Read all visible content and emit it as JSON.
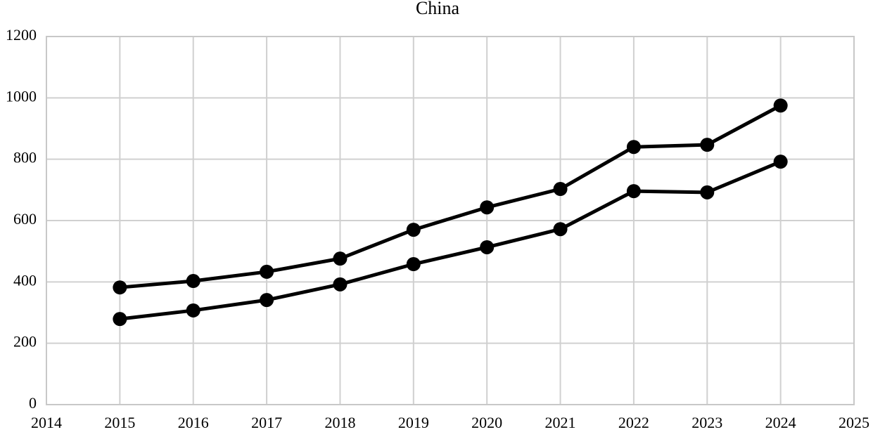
{
  "chart_data": {
    "type": "line",
    "title": "China",
    "x": [
      2015,
      2016,
      2017,
      2018,
      2019,
      2020,
      2021,
      2022,
      2023,
      2024
    ],
    "series": [
      {
        "color": "#000000",
        "values": [
          382,
          403,
          433,
          476,
          570,
          643,
          703,
          840,
          847,
          975
        ]
      },
      {
        "color": "#000000",
        "values": [
          279,
          307,
          341,
          392,
          458,
          513,
          572,
          696,
          692,
          792
        ]
      }
    ],
    "xlim": [
      2014,
      2025
    ],
    "xticks": [
      2014,
      2015,
      2016,
      2017,
      2018,
      2019,
      2020,
      2021,
      2022,
      2023,
      2024,
      2025
    ],
    "ylim": [
      0,
      1200
    ],
    "yticks": [
      0,
      200,
      400,
      600,
      800,
      1000,
      1200
    ],
    "grid": true,
    "markers": true
  }
}
